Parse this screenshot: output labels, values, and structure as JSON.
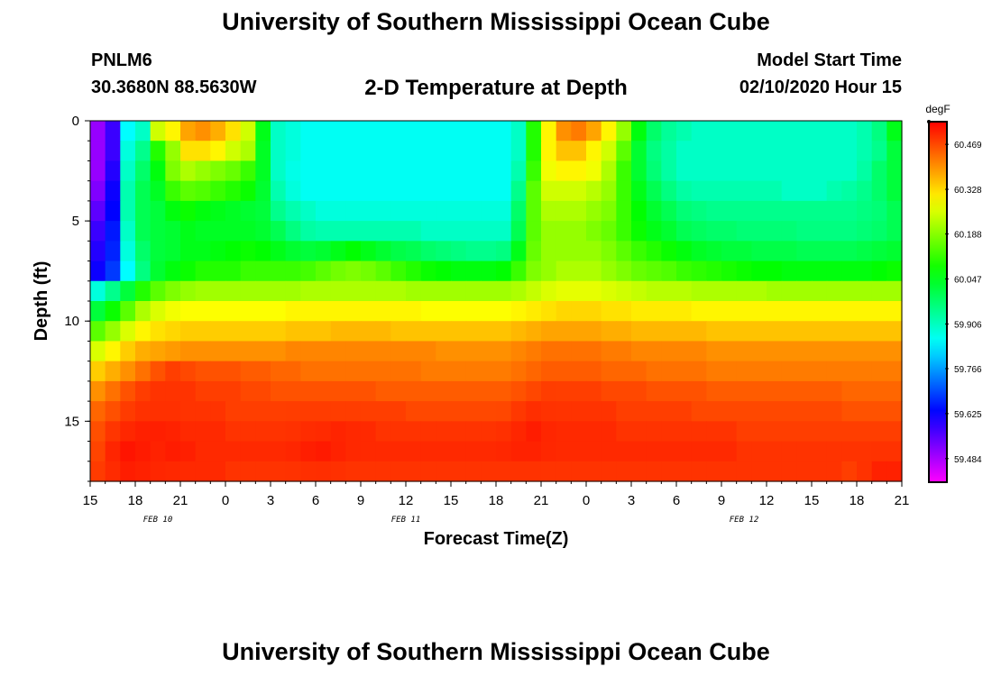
{
  "header": {
    "title": "University of Southern Mississippi Ocean Cube",
    "station_id": "PNLM6",
    "coordinates": "30.3680N 88.5630W",
    "start_label": "Model Start Time",
    "start_value": "02/10/2020 Hour 15"
  },
  "footer": {
    "title": "University of Southern Mississippi Ocean Cube"
  },
  "chart_data": {
    "type": "heatmap",
    "title": "2-D Temperature at Depth",
    "xlabel": "Forecast Time(Z)",
    "ylabel": "Depth (ft)",
    "x_range_hours": [
      0,
      54
    ],
    "y_range_ft": [
      0,
      18
    ],
    "x_ticks": [
      "15",
      "18",
      "21",
      "0",
      "3",
      "6",
      "9",
      "12",
      "15",
      "18",
      "21",
      "0",
      "3",
      "6",
      "9",
      "12",
      "15",
      "18",
      "21"
    ],
    "y_ticks": [
      "0",
      "5",
      "10",
      "15"
    ],
    "y_tick_values": [
      0,
      5,
      10,
      15
    ],
    "date_labels": [
      {
        "text": "FEB 10",
        "hour": 4.5
      },
      {
        "text": "FEB 11",
        "hour": 21
      },
      {
        "text": "FEB 12",
        "hour": 43.5
      }
    ],
    "colorbar": {
      "unit": "degF",
      "min": 59.41,
      "max": 60.54,
      "ticks": [
        "60.469",
        "60.328",
        "60.188",
        "60.047",
        "59.906",
        "59.766",
        "59.625",
        "59.484"
      ]
    },
    "temperature_degF": [
      [
        59.5,
        59.58,
        59.85,
        59.9,
        60.25,
        60.3,
        60.38,
        60.4,
        60.37,
        60.32,
        60.25,
        60.05,
        59.9,
        59.88,
        59.86,
        59.86,
        59.86,
        59.86,
        59.86,
        59.86,
        59.86,
        59.86,
        59.86,
        59.86,
        59.86,
        59.86,
        59.86,
        59.86,
        59.9,
        60.1,
        60.3,
        60.4,
        60.42,
        60.38,
        60.3,
        60.2,
        60.06,
        59.98,
        59.94,
        59.92,
        59.9,
        59.9,
        59.9,
        59.9,
        59.9,
        59.9,
        59.9,
        59.9,
        59.9,
        59.9,
        59.9,
        59.92,
        59.96,
        60.05
      ],
      [
        59.5,
        59.58,
        59.88,
        59.95,
        60.1,
        60.2,
        60.32,
        60.32,
        60.3,
        60.25,
        60.22,
        60.04,
        59.9,
        59.88,
        59.86,
        59.86,
        59.86,
        59.86,
        59.86,
        59.86,
        59.86,
        59.86,
        59.86,
        59.86,
        59.86,
        59.86,
        59.86,
        59.86,
        59.9,
        60.1,
        60.3,
        60.35,
        60.35,
        60.3,
        60.25,
        60.15,
        60.03,
        59.96,
        59.93,
        59.9,
        59.9,
        59.9,
        59.9,
        59.9,
        59.9,
        59.9,
        59.9,
        59.9,
        59.9,
        59.9,
        59.9,
        59.92,
        59.95,
        60.02
      ],
      [
        59.5,
        59.6,
        59.9,
        59.98,
        60.06,
        60.18,
        60.22,
        60.2,
        60.18,
        60.16,
        60.12,
        60.04,
        59.9,
        59.87,
        59.86,
        59.86,
        59.86,
        59.86,
        59.86,
        59.86,
        59.86,
        59.86,
        59.86,
        59.86,
        59.86,
        59.86,
        59.86,
        59.86,
        59.92,
        60.12,
        60.28,
        60.3,
        60.3,
        60.28,
        60.22,
        60.12,
        60.03,
        59.97,
        59.93,
        59.9,
        59.9,
        59.9,
        59.9,
        59.9,
        59.9,
        59.9,
        59.9,
        59.9,
        59.9,
        59.9,
        59.9,
        59.93,
        59.98,
        60.02
      ],
      [
        59.52,
        59.62,
        59.92,
        60.0,
        60.04,
        60.12,
        60.15,
        60.14,
        60.12,
        60.1,
        60.08,
        60.03,
        59.92,
        59.88,
        59.86,
        59.86,
        59.86,
        59.86,
        59.86,
        59.86,
        59.86,
        59.86,
        59.86,
        59.86,
        59.86,
        59.86,
        59.86,
        59.86,
        59.95,
        60.15,
        60.25,
        60.25,
        60.25,
        60.23,
        60.2,
        60.12,
        60.05,
        60.0,
        59.96,
        59.93,
        59.92,
        59.92,
        59.92,
        59.92,
        59.92,
        59.92,
        59.9,
        59.9,
        59.9,
        59.92,
        59.93,
        59.95,
        59.98,
        60.02
      ],
      [
        59.55,
        59.63,
        59.92,
        60.0,
        60.02,
        60.06,
        60.08,
        60.06,
        60.05,
        60.04,
        60.03,
        60.02,
        59.95,
        59.92,
        59.9,
        59.88,
        59.88,
        59.88,
        59.88,
        59.88,
        59.88,
        59.88,
        59.88,
        59.88,
        59.88,
        59.88,
        59.88,
        59.88,
        59.98,
        60.15,
        60.22,
        60.22,
        60.22,
        60.2,
        60.18,
        60.12,
        60.07,
        60.03,
        60.0,
        59.97,
        59.96,
        59.95,
        59.95,
        59.95,
        59.95,
        59.95,
        59.95,
        59.95,
        59.95,
        59.95,
        59.95,
        59.96,
        59.97,
        60.0
      ],
      [
        59.58,
        59.65,
        59.9,
        60.0,
        60.02,
        60.03,
        60.05,
        60.04,
        60.04,
        60.04,
        60.04,
        60.03,
        60.0,
        59.96,
        59.93,
        59.92,
        59.92,
        59.92,
        59.92,
        59.92,
        59.92,
        59.92,
        59.9,
        59.9,
        59.9,
        59.9,
        59.9,
        59.9,
        60.0,
        60.15,
        60.2,
        60.2,
        60.2,
        60.18,
        60.16,
        60.12,
        60.08,
        60.05,
        60.03,
        60.0,
        59.99,
        59.98,
        59.98,
        59.97,
        59.97,
        59.97,
        59.97,
        59.96,
        59.96,
        59.96,
        59.96,
        59.97,
        59.98,
        60.0
      ],
      [
        59.6,
        59.66,
        59.88,
        59.98,
        60.02,
        60.03,
        60.05,
        60.05,
        60.06,
        60.07,
        60.08,
        60.07,
        60.05,
        60.03,
        60.02,
        60.03,
        60.05,
        60.07,
        60.05,
        60.03,
        60.01,
        60.0,
        59.98,
        59.97,
        59.96,
        59.95,
        59.95,
        59.96,
        60.05,
        60.16,
        60.2,
        60.2,
        60.2,
        60.2,
        60.18,
        60.15,
        60.12,
        60.1,
        60.08,
        60.06,
        60.04,
        60.03,
        60.02,
        60.02,
        60.01,
        60.01,
        60.01,
        60.0,
        60.0,
        60.0,
        60.0,
        60.01,
        60.02,
        60.03
      ],
      [
        59.62,
        59.68,
        59.85,
        59.96,
        60.03,
        60.06,
        60.08,
        60.1,
        60.1,
        60.1,
        60.12,
        60.12,
        60.12,
        60.12,
        60.13,
        60.15,
        60.17,
        60.18,
        60.17,
        60.15,
        60.12,
        60.1,
        60.08,
        60.07,
        60.06,
        60.06,
        60.06,
        60.07,
        60.12,
        60.18,
        60.2,
        60.22,
        60.22,
        60.22,
        60.2,
        60.18,
        60.16,
        60.15,
        60.14,
        60.12,
        60.11,
        60.1,
        60.09,
        60.08,
        60.07,
        60.07,
        60.06,
        60.06,
        60.06,
        60.06,
        60.06,
        60.06,
        60.07,
        60.08
      ],
      [
        59.88,
        59.95,
        60.02,
        60.1,
        60.15,
        60.18,
        60.2,
        60.21,
        60.21,
        60.21,
        60.21,
        60.21,
        60.21,
        60.21,
        60.22,
        60.22,
        60.22,
        60.22,
        60.22,
        60.22,
        60.22,
        60.21,
        60.21,
        60.21,
        60.21,
        60.21,
        60.21,
        60.21,
        60.22,
        60.24,
        60.26,
        60.27,
        60.27,
        60.27,
        60.26,
        60.25,
        60.24,
        60.23,
        60.23,
        60.23,
        60.22,
        60.22,
        60.22,
        60.22,
        60.22,
        60.21,
        60.21,
        60.21,
        60.21,
        60.21,
        60.21,
        60.21,
        60.21,
        60.21
      ],
      [
        60.02,
        60.08,
        60.15,
        60.22,
        60.26,
        60.28,
        60.29,
        60.29,
        60.29,
        60.29,
        60.29,
        60.29,
        60.29,
        60.3,
        60.3,
        60.3,
        60.3,
        60.3,
        60.3,
        60.3,
        60.3,
        60.3,
        60.29,
        60.29,
        60.29,
        60.29,
        60.29,
        60.29,
        60.3,
        60.31,
        60.32,
        60.33,
        60.33,
        60.33,
        60.32,
        60.32,
        60.31,
        60.31,
        60.31,
        60.31,
        60.3,
        60.3,
        60.3,
        60.3,
        60.3,
        60.3,
        60.3,
        60.3,
        60.3,
        60.3,
        60.3,
        60.3,
        60.3,
        60.3
      ],
      [
        60.15,
        60.2,
        60.26,
        60.3,
        60.32,
        60.33,
        60.34,
        60.34,
        60.34,
        60.34,
        60.34,
        60.34,
        60.34,
        60.35,
        60.35,
        60.35,
        60.36,
        60.36,
        60.36,
        60.36,
        60.35,
        60.35,
        60.35,
        60.35,
        60.35,
        60.35,
        60.35,
        60.35,
        60.36,
        60.37,
        60.38,
        60.38,
        60.38,
        60.38,
        60.37,
        60.37,
        60.36,
        60.36,
        60.36,
        60.36,
        60.36,
        60.35,
        60.35,
        60.35,
        60.35,
        60.35,
        60.35,
        60.35,
        60.35,
        60.35,
        60.35,
        60.35,
        60.35,
        60.35
      ],
      [
        60.26,
        60.3,
        60.34,
        60.37,
        60.38,
        60.39,
        60.4,
        60.4,
        60.4,
        60.4,
        60.4,
        60.4,
        60.4,
        60.41,
        60.41,
        60.41,
        60.41,
        60.41,
        60.41,
        60.41,
        60.41,
        60.41,
        60.41,
        60.4,
        60.4,
        60.4,
        60.4,
        60.4,
        60.41,
        60.42,
        60.43,
        60.43,
        60.43,
        60.43,
        60.42,
        60.42,
        60.41,
        60.41,
        60.41,
        60.41,
        60.41,
        60.4,
        60.4,
        60.4,
        60.4,
        60.4,
        60.4,
        60.4,
        60.4,
        60.4,
        60.4,
        60.4,
        60.4,
        60.4
      ],
      [
        60.34,
        60.37,
        60.4,
        60.43,
        60.46,
        60.48,
        60.47,
        60.46,
        60.46,
        60.46,
        60.45,
        60.45,
        60.44,
        60.44,
        60.43,
        60.43,
        60.43,
        60.43,
        60.43,
        60.43,
        60.43,
        60.43,
        60.42,
        60.42,
        60.42,
        60.42,
        60.42,
        60.42,
        60.43,
        60.44,
        60.45,
        60.45,
        60.45,
        60.45,
        60.44,
        60.44,
        60.44,
        60.43,
        60.43,
        60.43,
        60.43,
        60.42,
        60.42,
        60.42,
        60.42,
        60.42,
        60.42,
        60.42,
        60.42,
        60.42,
        60.42,
        60.42,
        60.42,
        60.42
      ],
      [
        60.4,
        60.43,
        60.46,
        60.48,
        60.49,
        60.49,
        60.49,
        60.48,
        60.48,
        60.48,
        60.47,
        60.47,
        60.46,
        60.46,
        60.46,
        60.46,
        60.46,
        60.46,
        60.46,
        60.45,
        60.45,
        60.45,
        60.45,
        60.45,
        60.45,
        60.45,
        60.45,
        60.45,
        60.46,
        60.47,
        60.48,
        60.48,
        60.48,
        60.48,
        60.47,
        60.47,
        60.47,
        60.46,
        60.46,
        60.46,
        60.46,
        60.45,
        60.45,
        60.45,
        60.45,
        60.45,
        60.45,
        60.45,
        60.45,
        60.45,
        60.44,
        60.44,
        60.44,
        60.44
      ],
      [
        60.44,
        60.46,
        60.48,
        60.49,
        60.49,
        60.49,
        60.49,
        60.49,
        60.49,
        60.48,
        60.48,
        60.48,
        60.48,
        60.48,
        60.48,
        60.48,
        60.48,
        60.48,
        60.48,
        60.48,
        60.48,
        60.47,
        60.47,
        60.47,
        60.47,
        60.47,
        60.47,
        60.47,
        60.48,
        60.49,
        60.49,
        60.49,
        60.49,
        60.49,
        60.49,
        60.48,
        60.48,
        60.48,
        60.48,
        60.48,
        60.47,
        60.47,
        60.47,
        60.47,
        60.47,
        60.47,
        60.47,
        60.47,
        60.47,
        60.47,
        60.46,
        60.46,
        60.46,
        60.46
      ],
      [
        60.46,
        60.48,
        60.49,
        60.5,
        60.5,
        60.5,
        60.5,
        60.5,
        60.5,
        60.49,
        60.49,
        60.49,
        60.49,
        60.49,
        60.49,
        60.49,
        60.5,
        60.5,
        60.5,
        60.49,
        60.49,
        60.49,
        60.49,
        60.49,
        60.49,
        60.49,
        60.49,
        60.49,
        60.49,
        60.5,
        60.5,
        60.5,
        60.5,
        60.5,
        60.5,
        60.49,
        60.49,
        60.49,
        60.49,
        60.49,
        60.49,
        60.49,
        60.49,
        60.48,
        60.48,
        60.48,
        60.48,
        60.48,
        60.48,
        60.48,
        60.48,
        60.48,
        60.48,
        60.48
      ],
      [
        60.47,
        60.49,
        60.5,
        60.5,
        60.5,
        60.51,
        60.51,
        60.5,
        60.5,
        60.5,
        60.5,
        60.5,
        60.5,
        60.5,
        60.5,
        60.5,
        60.5,
        60.5,
        60.5,
        60.5,
        60.5,
        60.5,
        60.5,
        60.5,
        60.5,
        60.5,
        60.5,
        60.5,
        60.5,
        60.5,
        60.5,
        60.5,
        60.5,
        60.5,
        60.5,
        60.5,
        60.5,
        60.5,
        60.5,
        60.5,
        60.5,
        60.5,
        60.5,
        60.49,
        60.49,
        60.49,
        60.49,
        60.49,
        60.49,
        60.49,
        60.49,
        60.49,
        60.49,
        60.49
      ],
      [
        60.48,
        60.49,
        60.5,
        60.5,
        60.5,
        60.5,
        60.5,
        60.5,
        60.5,
        60.49,
        60.49,
        60.49,
        60.49,
        60.49,
        60.49,
        60.49,
        60.49,
        60.49,
        60.49,
        60.49,
        60.49,
        60.49,
        60.49,
        60.49,
        60.49,
        60.49,
        60.49,
        60.49,
        60.49,
        60.49,
        60.49,
        60.49,
        60.49,
        60.49,
        60.49,
        60.49,
        60.49,
        60.49,
        60.49,
        60.49,
        60.49,
        60.49,
        60.49,
        60.49,
        60.49,
        60.49,
        60.49,
        60.49,
        60.49,
        60.49,
        60.48,
        60.49,
        60.5,
        60.5
      ]
    ],
    "warm_spots": [
      {
        "hour": 2.5,
        "depth": 16.5,
        "delta": 0.02,
        "width_h": 1.6,
        "width_ft": 1.4
      },
      {
        "hour": 5,
        "depth": 15.5,
        "delta": 0.01,
        "width_h": 0.8,
        "width_ft": 1.0
      },
      {
        "hour": 15.3,
        "depth": 16.3,
        "delta": 0.015,
        "width_h": 1.4,
        "width_ft": 1.2
      },
      {
        "hour": 29,
        "depth": 15.6,
        "delta": 0.015,
        "width_h": 1.2,
        "width_ft": 1.2
      },
      {
        "hour": 53,
        "depth": 17.5,
        "delta": 0.01,
        "width_h": 1.0,
        "width_ft": 0.8
      }
    ]
  }
}
